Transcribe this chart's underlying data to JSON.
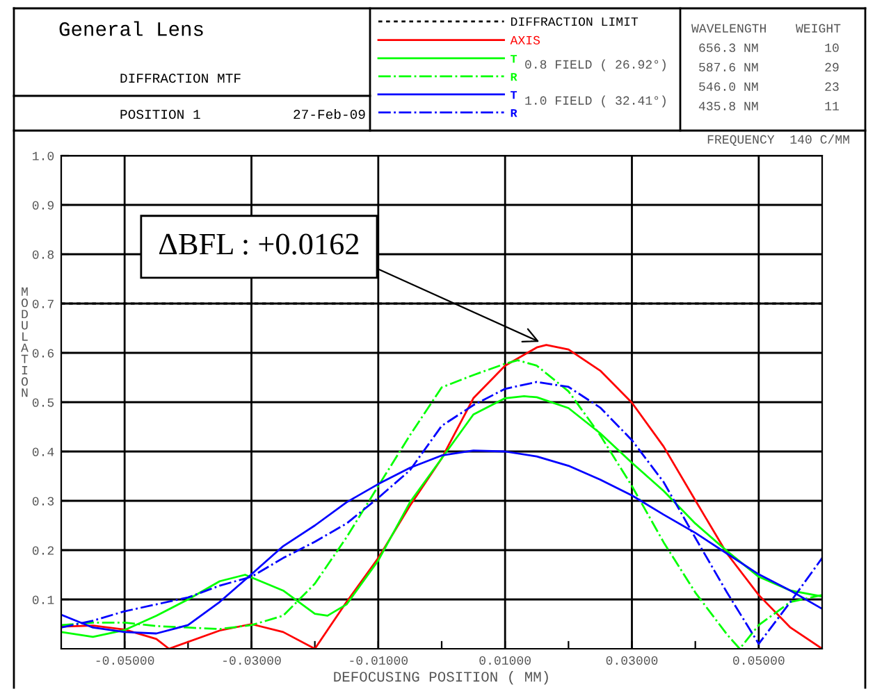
{
  "chart_data": {
    "type": "line",
    "title": "General Lens",
    "subtitle": "DIFFRACTION MTF",
    "xlabel": "DEFOCUSING POSITION ( MM)",
    "ylabel": "MODULATION",
    "xlim": [
      -0.06,
      0.06
    ],
    "ylim": [
      0,
      1
    ],
    "xticks": [
      {
        "value": -0.05,
        "label": "-0.05000"
      },
      {
        "value": -0.04,
        "label": null
      },
      {
        "value": -0.03,
        "label": "-0.03000"
      },
      {
        "value": -0.02,
        "label": null
      },
      {
        "value": -0.01,
        "label": "-0.01000"
      },
      {
        "value": 0,
        "label": null
      },
      {
        "value": 0.01,
        "label": "0.01000"
      },
      {
        "value": 0.02,
        "label": null
      },
      {
        "value": 0.03,
        "label": "0.03000"
      },
      {
        "value": 0.04,
        "label": null
      },
      {
        "value": 0.05,
        "label": "0.05000"
      }
    ],
    "yticks": [
      0.1,
      0.2,
      0.3,
      0.4,
      0.5,
      0.6,
      0.7,
      0.8,
      0.9,
      {
        "value": 1,
        "label": "1.0"
      }
    ],
    "grid": true,
    "legend": "top",
    "marker": "none",
    "ref_lines": [
      {
        "axis": "y",
        "value": 0.7,
        "label": "DIFFRACTION LIMIT",
        "color": "#000000",
        "line_style": "dotted"
      }
    ],
    "series": [
      {
        "name": "AXIS",
        "color": "#ff0000",
        "line_style": "solid",
        "x": [
          -0.06,
          -0.055,
          -0.05,
          -0.045,
          -0.043,
          -0.035,
          -0.03,
          -0.025,
          -0.02,
          -0.015,
          -0.01,
          -0.005,
          0,
          0.005,
          0.01,
          0.015,
          0.0165,
          0.02,
          0.025,
          0.03,
          0.035,
          0.04,
          0.045,
          0.05,
          0.055,
          0.06
        ],
        "values": [
          0.045,
          0.047,
          0.039,
          0.02,
          0.0,
          0.037,
          0.05,
          0.034,
          0.0,
          0.095,
          0.184,
          0.29,
          0.386,
          0.508,
          0.574,
          0.611,
          0.616,
          0.607,
          0.564,
          0.499,
          0.41,
          0.301,
          0.193,
          0.109,
          0.043,
          0.0
        ]
      },
      {
        "color": "#00ff00",
        "line_style": "solid",
        "x": [
          -0.06,
          -0.055,
          -0.05,
          -0.045,
          -0.04,
          -0.035,
          -0.031,
          -0.025,
          -0.02,
          -0.018,
          -0.015,
          -0.01,
          -0.005,
          0,
          0.005,
          0.01,
          0.013,
          0.015,
          0.02,
          0.025,
          0.03,
          0.035,
          0.04,
          0.045,
          0.05,
          0.055,
          0.06
        ],
        "values": [
          0.034,
          0.024,
          0.038,
          0.067,
          0.1,
          0.137,
          0.15,
          0.118,
          0.071,
          0.067,
          0.09,
          0.179,
          0.297,
          0.386,
          0.475,
          0.508,
          0.512,
          0.51,
          0.488,
          0.437,
          0.377,
          0.32,
          0.254,
          0.198,
          0.146,
          0.118,
          0.106
        ]
      },
      {
        "color": "#00ff00",
        "line_style": "dashdot",
        "x": [
          -0.06,
          -0.055,
          -0.05,
          -0.045,
          -0.04,
          -0.035,
          -0.03,
          -0.025,
          -0.02,
          -0.015,
          -0.01,
          -0.005,
          0,
          0.005,
          0.01,
          0.012,
          0.015,
          0.02,
          0.025,
          0.03,
          0.035,
          0.04,
          0.045,
          0.047,
          0.05,
          0.055,
          0.06
        ],
        "values": [
          0.048,
          0.053,
          0.053,
          0.046,
          0.043,
          0.04,
          0.048,
          0.067,
          0.132,
          0.226,
          0.33,
          0.433,
          0.53,
          0.555,
          0.578,
          0.585,
          0.574,
          0.522,
          0.433,
          0.33,
          0.216,
          0.114,
          0.029,
          0.0,
          0.048,
          0.095,
          0.109
        ]
      },
      {
        "color": "#0000ff",
        "line_style": "solid",
        "x": [
          -0.06,
          -0.055,
          -0.05,
          -0.045,
          -0.04,
          -0.035,
          -0.03,
          -0.025,
          -0.02,
          -0.015,
          -0.01,
          -0.005,
          0,
          0.005,
          0.01,
          0.015,
          0.02,
          0.025,
          0.03,
          0.035,
          0.04,
          0.045,
          0.05,
          0.055,
          0.06
        ],
        "values": [
          0.069,
          0.043,
          0.034,
          0.031,
          0.048,
          0.095,
          0.151,
          0.208,
          0.25,
          0.297,
          0.334,
          0.367,
          0.392,
          0.402,
          0.4,
          0.39,
          0.371,
          0.343,
          0.311,
          0.272,
          0.235,
          0.193,
          0.151,
          0.118,
          0.081
        ]
      },
      {
        "color": "#0000ff",
        "line_style": "dashdot",
        "x": [
          -0.06,
          -0.055,
          -0.05,
          -0.045,
          -0.04,
          -0.035,
          -0.03,
          -0.025,
          -0.02,
          -0.015,
          -0.01,
          -0.005,
          0,
          0.005,
          0.01,
          0.015,
          0.02,
          0.025,
          0.03,
          0.035,
          0.04,
          0.045,
          0.05,
          0.055,
          0.06
        ],
        "values": [
          0.043,
          0.057,
          0.076,
          0.09,
          0.104,
          0.128,
          0.146,
          0.184,
          0.217,
          0.254,
          0.306,
          0.362,
          0.452,
          0.494,
          0.527,
          0.541,
          0.531,
          0.489,
          0.423,
          0.338,
          0.225,
          0.114,
          0.01,
          0.095,
          0.184
        ]
      }
    ],
    "annotations": [
      "POSITION 1",
      "27-Feb-09",
      "0.8 FIELD ( 26.92°)",
      "1.0 FIELD ( 32.41°)",
      "WAVELENGTH",
      "WEIGHT",
      "656.3 NM",
      "587.6 NM",
      "546.0 NM",
      "435.8 NM",
      "10",
      "29",
      "23",
      "11",
      "FREQUENCY  140 C/MM",
      {
        "text": "ΔBFL : +0.0162",
        "x": 0.0165,
        "y": 0.616
      },
      "T",
      "R",
      "T",
      "R"
    ]
  }
}
